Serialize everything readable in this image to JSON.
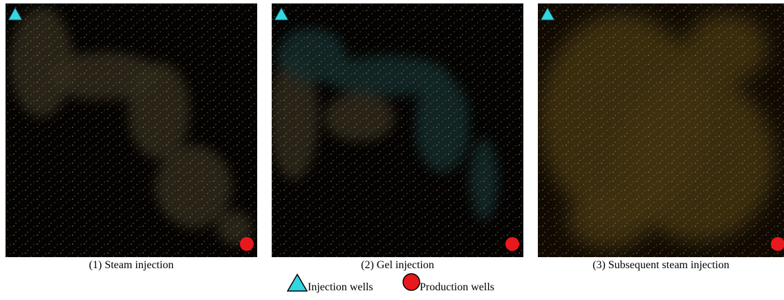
{
  "panels": [
    {
      "caption": "(1) Steam injection"
    },
    {
      "caption": "(2) Gel injection"
    },
    {
      "caption": "(3) Subsequent steam injection"
    }
  ],
  "legend": [
    {
      "label": "Injection wells"
    },
    {
      "label": "Production wells"
    }
  ]
}
